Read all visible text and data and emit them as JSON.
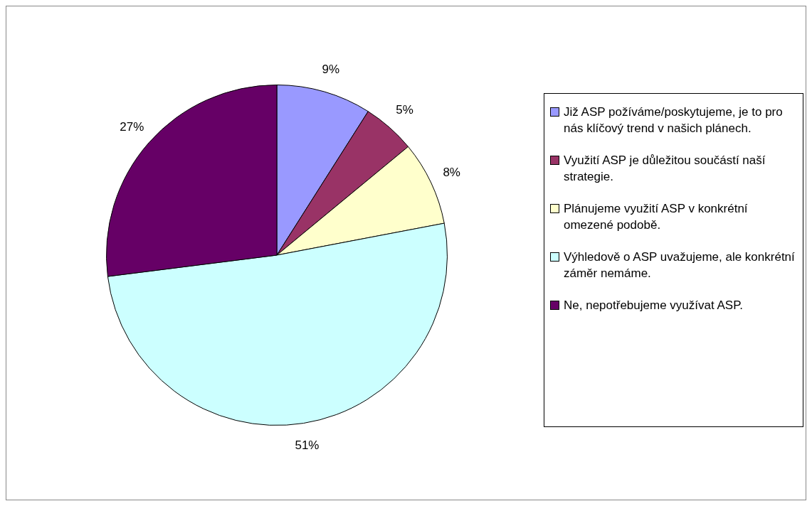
{
  "chart_data": {
    "type": "pie",
    "categories": [
      "Již ASP požíváme/poskytujeme, je to pro nás klíčový trend v našich plánech.",
      "Využití ASP je důležitou součástí naší strategie.",
      "Plánujeme využití ASP v konkrétní omezené podobě.",
      "Výhledově o ASP uvažujeme, ale konkrétní záměr nemáme.",
      "Ne, nepotřebujeme využívat ASP."
    ],
    "values": [
      9,
      5,
      8,
      51,
      27
    ],
    "colors": [
      "#9999ff",
      "#993366",
      "#ffffcc",
      "#ccffff",
      "#660066"
    ],
    "value_labels": [
      "9%",
      "5%",
      "8%",
      "51%",
      "27%"
    ],
    "legend": "right"
  }
}
